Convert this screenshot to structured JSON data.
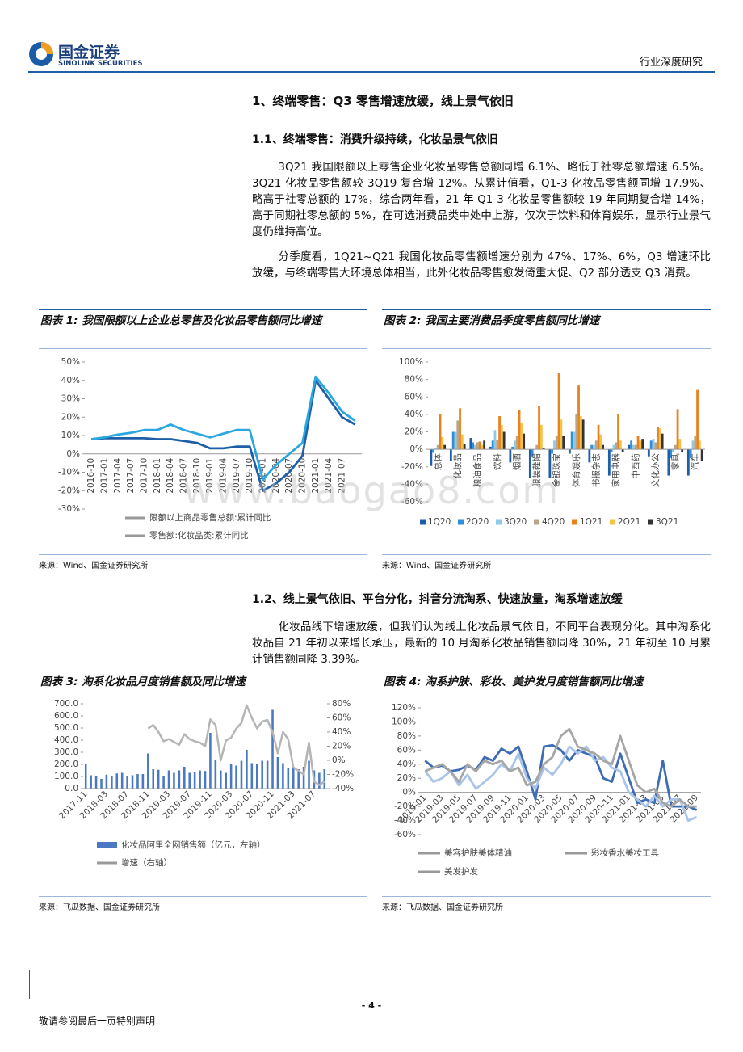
{
  "header": {
    "logo_cn": "国金证券",
    "logo_en": "SINOLINK SECURITIES",
    "report_type": "行业深度研究"
  },
  "heading_1": "1、终端零售：Q3 零售增速放缓，线上景气依旧",
  "heading_1_1": "1.1、终端零售：消费升级持续，化妆品景气依旧",
  "paragraphs_1_1": [
    "3Q21 我国限额以上零售企业化妆品零售总额同增 6.1%、略低于社零总额增速 6.5%。3Q21 化妆品零售额较 3Q19 复合增 12%。从累计值看，Q1-3 化妆品零售额同增 17.9%、略高于社零总额的 17%，综合两年看，21 年 Q1-3 化妆品零售额较 19 年同期复合增 14%，高于同期社零总额的 5%，在可选消费品类中处中上游，仅次于饮料和体育娱乐，显示行业景气度仍维持高位。",
    "分季度看，1Q21~Q21 我国化妆品零售额增速分别为 47%、17%、6%，Q3 增速环比放缓，与终端零售大环境总体相当，此外化妆品零售愈发倚重大促、Q2 部分透支 Q3 消费。"
  ],
  "heading_1_2": "1.2、线上景气依旧、平台分化，抖音分流淘系、快速放量，淘系增速放缓",
  "paragraphs_1_2": [
    "化妆品线下增速放缓，但我们认为线上化妆品景气依旧，不同平台表现分化。其中淘系化妆品自 21 年初以来增长承压，最新的 10 月淘系化妆品销售额同降 30%，21 年初至 10 月累计销售额同降 3.39%。"
  ],
  "figures": [
    {
      "title": "图表 1: 我国限额以上企业总零售及化妆品零售额同比增速",
      "source": "来源：Wind、国金证券研究所",
      "chart_data": {
        "type": "line",
        "categories": [
          "2016-10",
          "2017-01",
          "2017-04",
          "2017-07",
          "2017-10",
          "2018-01",
          "2018-04",
          "2018-07",
          "2018-10",
          "2019-01",
          "2019-04",
          "2019-07",
          "2019-10",
          "2020-01",
          "2020-04",
          "2020-07",
          "2020-10",
          "2021-01",
          "2021-04",
          "2021-07",
          null
        ],
        "series": [
          {
            "name": "限额以上商品零售总额:累计同比",
            "color": "#1f5fa8",
            "values": [
              8,
              8.5,
              8.5,
              8.5,
              8.5,
              8,
              8,
              7,
              6,
              3,
              3,
              4,
              4,
              -20,
              -16,
              -10,
              -1,
              40,
              30,
              20,
              16
            ]
          },
          {
            "name": "零售额:化妆品类:累计同比",
            "color": "#2aa7e1",
            "values": [
              8,
              9,
              10.5,
              11.5,
              13,
              13,
              16,
              13,
              11,
              9,
              11,
              13,
              13,
              -14,
              -6,
              0,
              6,
              42,
              33,
              23,
              18
            ]
          }
        ],
        "ylim": [
          -30,
          50
        ],
        "yticks": [
          {
            "value": -30,
            "label": "-30%"
          },
          {
            "value": -20,
            "label": "-20%"
          },
          {
            "value": -10,
            "label": "-10%"
          },
          {
            "value": 0,
            "label": "0%"
          },
          {
            "value": 10,
            "label": "10%"
          },
          {
            "value": 20,
            "label": "20%"
          },
          {
            "value": 30,
            "label": "30%"
          },
          {
            "value": 40,
            "label": "40%"
          },
          {
            "value": 50,
            "label": "50%"
          }
        ]
      }
    },
    {
      "title": "图表 2: 我国主要消费品季度零售额同比增速",
      "source": "来源：Wind、国金证券研究所",
      "chart_data": {
        "type": "bar",
        "categories": [
          "总体",
          "化妆品",
          "粮油食品",
          "饮料",
          "烟酒",
          "服装鞋帽",
          "金银珠宝",
          "体育娱乐",
          "书报杂志",
          "家用电器",
          "中西药",
          "文化办公",
          "家具",
          "汽车"
        ],
        "series": [
          {
            "name": "1Q20",
            "color": "#1f5fa8",
            "values": [
              -19,
              -13,
              13,
              3,
              -15,
              -33,
              -33,
              -5,
              -15,
              -30,
              5,
              -8,
              -30,
              -30
            ]
          },
          {
            "name": "2Q20",
            "color": "#2f8fd8",
            "values": [
              -4,
              20,
              8,
              10,
              3,
              -8,
              -5,
              20,
              5,
              -3,
              10,
              10,
              -10,
              -10
            ]
          },
          {
            "name": "3Q20",
            "color": "#8ecbe9",
            "values": [
              1,
              20,
              5,
              22,
              10,
              0,
              10,
              20,
              5,
              5,
              5,
              12,
              -3,
              10
            ]
          },
          {
            "name": "4Q20",
            "color": "#b8a58a",
            "values": [
              5,
              33,
              8,
              11,
              15,
              5,
              15,
              40,
              10,
              8,
              5,
              8,
              5,
              15
            ]
          },
          {
            "name": "1Q21",
            "color": "#e8821e",
            "values": [
              40,
              47,
              9,
              38,
              45,
              50,
              87,
              73,
              28,
              40,
              15,
              26,
              46,
              68
            ]
          },
          {
            "name": "2Q21",
            "color": "#f5c242",
            "values": [
              14,
              17,
              5,
              28,
              30,
              28,
              34,
              38,
              17,
              10,
              10,
              24,
              12,
              10
            ]
          },
          {
            "name": "3Q21",
            "color": "#333333",
            "values": [
              5,
              6,
              10,
              20,
              18,
              1,
              15,
              34,
              5,
              -3,
              12,
              18,
              -3,
              -13
            ]
          }
        ],
        "ylim": [
          -60,
          100
        ],
        "yticks": [
          {
            "value": -60,
            "label": "-60%"
          },
          {
            "value": -40,
            "label": "-40%"
          },
          {
            "value": -20,
            "label": "-20%"
          },
          {
            "value": 0,
            "label": "0%"
          },
          {
            "value": 20,
            "label": "20%"
          },
          {
            "value": 40,
            "label": "40%"
          },
          {
            "value": 60,
            "label": "60%"
          },
          {
            "value": 80,
            "label": "80%"
          },
          {
            "value": 100,
            "label": "100%"
          }
        ]
      }
    },
    {
      "title": "图表 3: 淘系化妆品月度销售额及同比增速",
      "source": "来源：飞瓜数据、国金证券研究所",
      "chart_data": {
        "type": "combo",
        "categories": [
          "2017-11",
          null,
          null,
          null,
          "2018-03",
          null,
          null,
          null,
          "2018-07",
          null,
          null,
          null,
          "2018-11",
          null,
          null,
          null,
          "2019-03",
          null,
          null,
          null,
          "2019-07",
          null,
          null,
          null,
          "2019-11",
          null,
          null,
          null,
          "2020-03",
          null,
          null,
          null,
          "2020-07",
          null,
          null,
          null,
          "2020-11",
          null,
          null,
          null,
          "2021-03",
          null,
          null,
          null,
          "2021-07",
          null,
          null
        ],
        "series": [
          {
            "name": "化妆品阿里全网销售额（亿元，左轴）",
            "color": "#4a78c2",
            "values": [
              200,
              110,
              105,
              80,
              115,
              105,
              125,
              130,
              100,
              110,
              120,
              120,
              290,
              160,
              155,
              100,
              150,
              130,
              150,
              180,
              130,
              140,
              150,
              145,
              460,
              240,
              150,
              130,
              200,
              190,
              230,
              320,
              210,
              200,
              230,
              230,
              650,
              260,
              210,
              170,
              180,
              160,
              180,
              230,
              150,
              130,
              160
            ]
          },
          {
            "name": "增速（右轴）",
            "color": "#b5b5b5",
            "axis": "y2",
            "values": [
              null,
              null,
              null,
              null,
              null,
              null,
              null,
              null,
              null,
              null,
              null,
              null,
              45,
              50,
              40,
              27,
              30,
              26,
              22,
              37,
              30,
              27,
              25,
              20,
              58,
              50,
              0,
              28,
              32,
              45,
              53,
              78,
              60,
              45,
              55,
              57,
              40,
              10,
              40,
              30,
              -10,
              -15,
              -20,
              25,
              -30,
              -35,
              -30
            ]
          }
        ],
        "ylim": [
          0,
          700
        ],
        "yticks": [
          {
            "value": 0,
            "label": "0.0"
          },
          {
            "value": 100,
            "label": "100.0"
          },
          {
            "value": 200,
            "label": "200.0"
          },
          {
            "value": 300,
            "label": "300.0"
          },
          {
            "value": 400,
            "label": "400.0"
          },
          {
            "value": 500,
            "label": "500.0"
          },
          {
            "value": 600,
            "label": "600.0"
          },
          {
            "value": 700,
            "label": "700.0"
          }
        ],
        "y2lim": [
          -40,
          80
        ],
        "y2ticks": [
          {
            "value": -40,
            "label": "-40%"
          },
          {
            "value": -20,
            "label": "-20%"
          },
          {
            "value": 0,
            "label": "0%"
          },
          {
            "value": 20,
            "label": "20%"
          },
          {
            "value": 40,
            "label": "40%"
          },
          {
            "value": 60,
            "label": "60%"
          },
          {
            "value": 80,
            "label": "80%"
          }
        ]
      }
    },
    {
      "title": "图表 4: 淘系护肤、彩妆、美护发月度销售额同比增速",
      "source": "来源：飞瓜数据、国金证券研究所",
      "chart_data": {
        "type": "line",
        "categories": [
          "2019-01",
          null,
          "2019-03",
          null,
          "2019-05",
          null,
          "2019-07",
          null,
          "2019-09",
          null,
          "2019-11",
          null,
          "2020-01",
          null,
          "2020-03",
          null,
          "2020-05",
          null,
          "2020-07",
          null,
          "2020-09",
          null,
          "2020-11",
          null,
          "2021-01",
          null,
          "2021-03",
          null,
          "2021-05",
          null,
          "2021-07",
          null,
          "2021-09"
        ],
        "series": [
          {
            "name": "美容护肤美体精油",
            "color": "#3f6db5",
            "values": [
              45,
              35,
              38,
              30,
              32,
              38,
              32,
              50,
              45,
              62,
              55,
              65,
              30,
              -10,
              65,
              67,
              60,
              45,
              60,
              55,
              50,
              20,
              15,
              55,
              20,
              -15,
              -10,
              -15,
              45,
              -20,
              -20,
              -20,
              -25
            ]
          },
          {
            "name": "彩妆香水美妆工具",
            "color": "#a9c4e8",
            "values": [
              30,
              15,
              20,
              30,
              10,
              25,
              5,
              15,
              25,
              40,
              30,
              55,
              20,
              5,
              35,
              25,
              40,
              65,
              55,
              65,
              45,
              50,
              35,
              30,
              0,
              -10,
              -20,
              -5,
              -20,
              -10,
              -10,
              -40,
              -35
            ]
          },
          {
            "name": "美发护发",
            "color": "#a6a6a6",
            "values": [
              30,
              35,
              40,
              30,
              15,
              40,
              30,
              45,
              40,
              45,
              30,
              35,
              10,
              15,
              40,
              50,
              80,
              90,
              65,
              60,
              55,
              45,
              40,
              80,
              45,
              10,
              0,
              5,
              -15,
              -20,
              -10,
              -20,
              -20
            ]
          }
        ],
        "ylim": [
          -60,
          120
        ],
        "yticks": [
          {
            "value": -60,
            "label": "-60%"
          },
          {
            "value": -40,
            "label": "-40%"
          },
          {
            "value": -20,
            "label": "-20%"
          },
          {
            "value": 0,
            "label": "0%"
          },
          {
            "value": 20,
            "label": "20%"
          },
          {
            "value": 40,
            "label": "40%"
          },
          {
            "value": 60,
            "label": "60%"
          },
          {
            "value": 80,
            "label": "80%"
          },
          {
            "value": 100,
            "label": "100%"
          },
          {
            "value": 120,
            "label": "120%"
          }
        ]
      }
    }
  ],
  "watermark": "www.baogao8.com",
  "footer": {
    "page": "- 4 -",
    "disclaimer": "敬请参阅最后一页特别声明"
  }
}
